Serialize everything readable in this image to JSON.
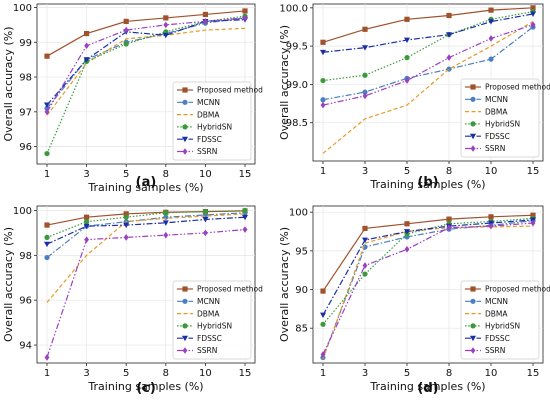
{
  "chart_data": [
    {
      "panel_label": "(a)",
      "type": "line",
      "xlabel": "Training samples (%)",
      "ylabel": "Overall accuracy (%)",
      "x": [
        1,
        3,
        5,
        8,
        10,
        15
      ],
      "x_ticks": [
        "1",
        "3",
        "5",
        "8",
        "10",
        "15"
      ],
      "ylim": [
        95.5,
        100.1
      ],
      "y_ticks": [
        96,
        97,
        98,
        99,
        100
      ],
      "y_tick_labels": [
        "96",
        "97",
        "98",
        "99",
        "100"
      ],
      "grid": true,
      "legend": "bottom-right",
      "series": [
        {
          "name": "Proposed method",
          "values": [
            98.6,
            99.25,
            99.6,
            99.7,
            99.8,
            99.9
          ]
        },
        {
          "name": "MCNN",
          "values": [
            97.1,
            98.5,
            99.0,
            99.25,
            99.55,
            99.7
          ]
        },
        {
          "name": "DBMA",
          "values": [
            96.9,
            98.4,
            99.1,
            99.2,
            99.35,
            99.4
          ]
        },
        {
          "name": "HybridSN",
          "values": [
            95.8,
            98.45,
            98.95,
            99.3,
            99.6,
            99.75
          ]
        },
        {
          "name": "FDSSC",
          "values": [
            97.2,
            98.5,
            99.3,
            99.2,
            99.6,
            99.65
          ]
        },
        {
          "name": "SSRN",
          "values": [
            97.0,
            98.9,
            99.35,
            99.5,
            99.6,
            99.7
          ]
        }
      ]
    },
    {
      "panel_label": "(b)",
      "type": "line",
      "xlabel": "Training samples (%)",
      "ylabel": "Overall accuracy (%)",
      "x": [
        1,
        3,
        5,
        8,
        10,
        15
      ],
      "x_ticks": [
        "1",
        "3",
        "5",
        "8",
        "10",
        "15"
      ],
      "ylim": [
        98.0,
        100.05
      ],
      "y_ticks": [
        98.5,
        99.0,
        99.5,
        100.0
      ],
      "y_tick_labels": [
        "98.5",
        "99.0",
        "99.5",
        "100.0"
      ],
      "grid": true,
      "legend": "bottom-right",
      "series": [
        {
          "name": "Proposed method",
          "values": [
            99.55,
            99.72,
            99.85,
            99.9,
            99.97,
            100.0
          ]
        },
        {
          "name": "MCNN",
          "values": [
            98.8,
            98.9,
            99.08,
            99.2,
            99.33,
            99.75
          ]
        },
        {
          "name": "DBMA",
          "values": [
            98.1,
            98.55,
            98.73,
            99.2,
            99.5,
            99.82
          ]
        },
        {
          "name": "HybridSN",
          "values": [
            99.05,
            99.12,
            99.35,
            99.65,
            99.85,
            99.95
          ]
        },
        {
          "name": "FDSSC",
          "values": [
            99.42,
            99.48,
            99.58,
            99.65,
            99.82,
            99.92
          ]
        },
        {
          "name": "SSRN",
          "values": [
            98.73,
            98.85,
            99.05,
            99.35,
            99.6,
            99.78
          ]
        }
      ]
    },
    {
      "panel_label": "(c)",
      "type": "line",
      "xlabel": "Training samples (%)",
      "ylabel": "Overall accuracy (%)",
      "x": [
        1,
        3,
        5,
        8,
        10,
        15
      ],
      "x_ticks": [
        "1",
        "3",
        "5",
        "8",
        "10",
        "15"
      ],
      "ylim": [
        93.2,
        100.2
      ],
      "y_ticks": [
        94,
        96,
        98,
        100
      ],
      "y_tick_labels": [
        "94",
        "96",
        "98",
        "100"
      ],
      "grid": true,
      "legend": "bottom-right",
      "series": [
        {
          "name": "Proposed method",
          "values": [
            99.35,
            99.7,
            99.85,
            99.92,
            99.95,
            99.98
          ]
        },
        {
          "name": "MCNN",
          "values": [
            97.9,
            99.3,
            99.5,
            99.7,
            99.8,
            99.9
          ]
        },
        {
          "name": "DBMA",
          "values": [
            95.9,
            98.0,
            99.5,
            99.65,
            99.75,
            99.85
          ]
        },
        {
          "name": "HybridSN",
          "values": [
            98.8,
            99.5,
            99.7,
            99.9,
            99.95,
            100.0
          ]
        },
        {
          "name": "FDSSC",
          "values": [
            98.5,
            99.3,
            99.35,
            99.45,
            99.6,
            99.7
          ]
        },
        {
          "name": "SSRN",
          "values": [
            93.45,
            98.7,
            98.8,
            98.9,
            99.0,
            99.15
          ]
        }
      ]
    },
    {
      "panel_label": "(d)",
      "type": "line",
      "xlabel": "Training samples (%)",
      "ylabel": "Overall accuracy (%)",
      "x": [
        1,
        3,
        5,
        8,
        10,
        15
      ],
      "x_ticks": [
        "1",
        "3",
        "5",
        "8",
        "10",
        "15"
      ],
      "ylim": [
        80.5,
        100.8
      ],
      "y_ticks": [
        85,
        90,
        95,
        100
      ],
      "y_tick_labels": [
        "85",
        "90",
        "95",
        "100"
      ],
      "grid": true,
      "legend": "bottom-right",
      "series": [
        {
          "name": "Proposed method",
          "values": [
            89.8,
            97.9,
            98.5,
            99.1,
            99.4,
            99.6
          ]
        },
        {
          "name": "MCNN",
          "values": [
            81.2,
            95.5,
            96.8,
            97.8,
            98.3,
            98.9
          ]
        },
        {
          "name": "DBMA",
          "values": [
            81.0,
            96.0,
            97.5,
            98.0,
            98.1,
            98.2
          ]
        },
        {
          "name": "HybridSN",
          "values": [
            85.5,
            92.0,
            97.2,
            98.5,
            98.8,
            99.2
          ]
        },
        {
          "name": "FDSSC",
          "values": [
            86.7,
            96.4,
            97.5,
            98.2,
            98.6,
            99.0
          ]
        },
        {
          "name": "SSRN",
          "values": [
            81.6,
            93.1,
            95.2,
            98.0,
            98.2,
            98.6
          ]
        }
      ]
    }
  ],
  "series_styles": [
    {
      "color": "#a0522d",
      "marker": "square",
      "dash": ""
    },
    {
      "color": "#4a7fc1",
      "marker": "circle",
      "dash": "6,2,1.5,2"
    },
    {
      "color": "#e69a28",
      "marker": "none",
      "dash": "4,2.5"
    },
    {
      "color": "#3a9a3a",
      "marker": "circle",
      "dash": "1.5,1.8"
    },
    {
      "color": "#1b2ea8",
      "marker": "triangle-down",
      "dash": "6,2,1.5,2"
    },
    {
      "color": "#9b3fc4",
      "marker": "diamond",
      "dash": "6,2,1.5,2,1.5,2"
    }
  ]
}
